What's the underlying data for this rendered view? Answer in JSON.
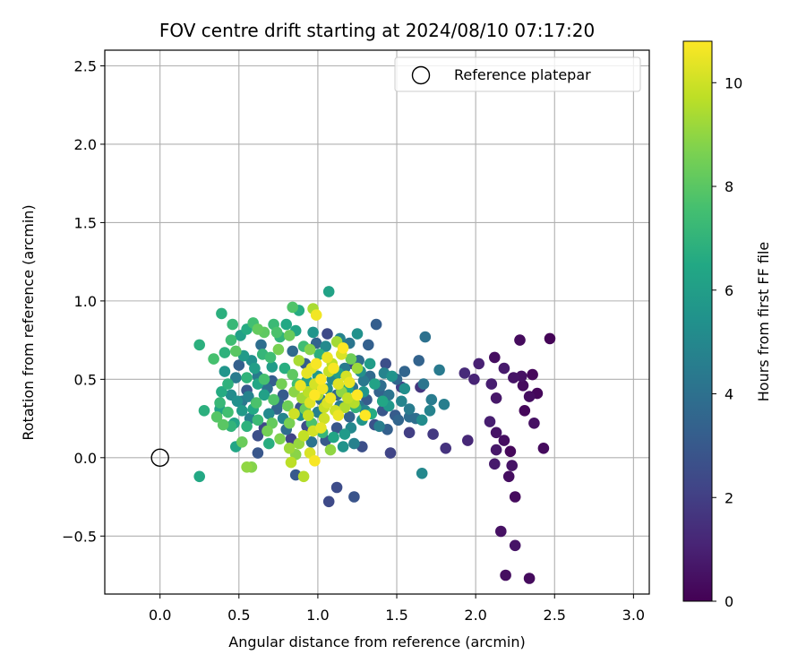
{
  "chart_data": {
    "type": "scatter",
    "title": "FOV centre drift starting at 2024/08/10 07:17:20",
    "xlabel": "Angular distance from reference (arcmin)",
    "ylabel": "Rotation from reference (arcmin)",
    "xlim": [
      -0.35,
      3.1
    ],
    "ylim": [
      -0.87,
      2.6
    ],
    "x_ticks": [
      0.0,
      0.5,
      1.0,
      1.5,
      2.0,
      2.5,
      3.0
    ],
    "x_tick_labels": [
      "0.0",
      "0.5",
      "1.0",
      "1.5",
      "2.0",
      "2.5",
      "3.0"
    ],
    "y_ticks": [
      -0.5,
      0.0,
      0.5,
      1.0,
      1.5,
      2.0,
      2.5
    ],
    "y_tick_labels": [
      "−0.5",
      "0.0",
      "0.5",
      "1.0",
      "1.5",
      "2.0",
      "2.5"
    ],
    "grid": true,
    "legend": {
      "placement": "top-right",
      "entries": [
        "Reference platepar"
      ]
    },
    "reference_point": {
      "x": 0.0,
      "y": 0.0
    },
    "colorbar": {
      "label": "Hours from first FF file",
      "colormap": "viridis",
      "range": [
        0,
        10.8
      ],
      "ticks": [
        0,
        2,
        4,
        6,
        8,
        10
      ],
      "tick_labels": [
        "0",
        "2",
        "4",
        "6",
        "8",
        "10"
      ]
    },
    "points": [
      [
        2.47,
        0.76,
        0.1
      ],
      [
        2.28,
        0.75,
        0.3
      ],
      [
        2.12,
        0.64,
        0.4
      ],
      [
        2.36,
        0.53,
        0.2
      ],
      [
        2.29,
        0.52,
        0.5
      ],
      [
        2.24,
        0.51,
        0.6
      ],
      [
        2.18,
        0.57,
        0.8
      ],
      [
        2.02,
        0.6,
        1.0
      ],
      [
        1.93,
        0.54,
        1.3
      ],
      [
        1.99,
        0.5,
        1.1
      ],
      [
        2.1,
        0.47,
        0.9
      ],
      [
        2.3,
        0.46,
        0.3
      ],
      [
        2.39,
        0.41,
        0.2
      ],
      [
        2.34,
        0.39,
        0.4
      ],
      [
        2.13,
        0.38,
        0.7
      ],
      [
        2.31,
        0.3,
        0.2
      ],
      [
        2.09,
        0.23,
        0.9
      ],
      [
        2.37,
        0.22,
        0.5
      ],
      [
        2.13,
        0.16,
        0.6
      ],
      [
        2.18,
        0.11,
        0.4
      ],
      [
        1.95,
        0.11,
        1.2
      ],
      [
        2.43,
        0.06,
        0.3
      ],
      [
        2.13,
        0.05,
        0.7
      ],
      [
        2.22,
        0.04,
        0.2
      ],
      [
        2.12,
        -0.04,
        0.8
      ],
      [
        2.23,
        -0.05,
        0.6
      ],
      [
        2.21,
        -0.12,
        0.4
      ],
      [
        2.25,
        -0.25,
        0.3
      ],
      [
        2.16,
        -0.47,
        0.5
      ],
      [
        2.25,
        -0.56,
        0.6
      ],
      [
        2.19,
        -0.75,
        0.4
      ],
      [
        2.34,
        -0.77,
        0.3
      ],
      [
        1.81,
        0.06,
        1.6
      ],
      [
        1.73,
        0.15,
        1.8
      ],
      [
        1.58,
        0.16,
        2.0
      ],
      [
        1.46,
        0.03,
        2.2
      ],
      [
        1.65,
        0.45,
        1.7
      ],
      [
        1.53,
        0.45,
        2.1
      ],
      [
        1.12,
        -0.19,
        2.5
      ],
      [
        1.07,
        -0.28,
        2.4
      ],
      [
        1.23,
        -0.25,
        2.8
      ],
      [
        0.86,
        -0.11,
        3.0
      ],
      [
        1.22,
        0.6,
        2.3
      ],
      [
        1.43,
        0.6,
        2.6
      ],
      [
        1.37,
        0.85,
        3.2
      ],
      [
        1.32,
        0.72,
        3.3
      ],
      [
        1.06,
        0.79,
        2.4
      ],
      [
        1.64,
        0.62,
        3.4
      ],
      [
        1.55,
        0.55,
        3.5
      ],
      [
        1.5,
        0.5,
        3.6
      ],
      [
        1.68,
        0.77,
        4.0
      ],
      [
        1.67,
        0.47,
        4.2
      ],
      [
        1.77,
        0.56,
        4.4
      ],
      [
        1.8,
        0.34,
        4.6
      ],
      [
        1.71,
        0.3,
        4.8
      ],
      [
        1.72,
        0.37,
        4.5
      ],
      [
        1.66,
        0.24,
        5.2
      ],
      [
        1.66,
        -0.1,
        5.0
      ],
      [
        1.58,
        0.26,
        3.8
      ],
      [
        1.49,
        0.27,
        3.1
      ],
      [
        1.41,
        0.3,
        2.9
      ],
      [
        1.36,
        0.21,
        2.7
      ],
      [
        1.45,
        0.4,
        4.1
      ],
      [
        1.4,
        0.46,
        3.9
      ],
      [
        1.33,
        0.52,
        3.7
      ],
      [
        1.29,
        0.49,
        4.3
      ],
      [
        1.26,
        0.62,
        3.8
      ],
      [
        1.25,
        0.79,
        5.4
      ],
      [
        1.29,
        0.42,
        5.6
      ],
      [
        1.3,
        0.3,
        4.9
      ],
      [
        1.2,
        0.26,
        3.4
      ],
      [
        1.12,
        0.19,
        2.9
      ],
      [
        1.16,
        0.07,
        5.5
      ],
      [
        1.23,
        0.09,
        4.7
      ],
      [
        1.28,
        0.07,
        2.6
      ],
      [
        1.05,
        0.11,
        3.0
      ],
      [
        0.93,
        0.2,
        2.5
      ],
      [
        0.83,
        0.12,
        2.2
      ],
      [
        0.66,
        0.19,
        2.3
      ],
      [
        0.62,
        0.14,
        2.6
      ],
      [
        0.71,
        0.49,
        3.2
      ],
      [
        0.78,
        0.4,
        3.1
      ],
      [
        0.75,
        0.35,
        3.6
      ],
      [
        0.89,
        0.32,
        2.8
      ],
      [
        0.97,
        0.46,
        3.9
      ],
      [
        1.02,
        0.37,
        4.1
      ],
      [
        1.12,
        0.4,
        3.6
      ],
      [
        1.14,
        0.33,
        4.6
      ],
      [
        0.99,
        0.73,
        3.4
      ],
      [
        0.92,
        0.6,
        3.2
      ],
      [
        0.84,
        0.68,
        3.7
      ],
      [
        0.64,
        0.72,
        3.9
      ],
      [
        0.55,
        0.43,
        3.0
      ],
      [
        0.5,
        0.59,
        3.3
      ],
      [
        0.62,
        0.03,
        2.9
      ],
      [
        0.52,
        0.36,
        4.3
      ],
      [
        0.48,
        0.51,
        4.5
      ],
      [
        0.57,
        0.25,
        4.7
      ],
      [
        0.45,
        0.4,
        5.2
      ],
      [
        0.41,
        0.55,
        5.6
      ],
      [
        0.53,
        0.65,
        5.8
      ],
      [
        0.6,
        0.57,
        6.0
      ],
      [
        0.47,
        0.22,
        6.3
      ],
      [
        0.59,
        0.31,
        6.5
      ],
      [
        0.51,
        0.78,
        6.1
      ],
      [
        0.55,
        0.82,
        6.6
      ],
      [
        0.41,
        0.67,
        6.9
      ],
      [
        0.39,
        0.92,
        6.8
      ],
      [
        0.48,
        0.07,
        6.4
      ],
      [
        0.69,
        0.09,
        6.7
      ],
      [
        0.25,
        -0.12,
        6.5
      ],
      [
        0.28,
        0.3,
        6.8
      ],
      [
        0.25,
        0.72,
        6.8
      ],
      [
        0.46,
        0.85,
        7.2
      ],
      [
        0.59,
        0.86,
        7.5
      ],
      [
        0.72,
        0.85,
        7.3
      ],
      [
        0.76,
        0.77,
        7.0
      ],
      [
        0.84,
        0.96,
        7.8
      ],
      [
        0.88,
        0.94,
        6.6
      ],
      [
        1.07,
        1.06,
        6.2
      ],
      [
        0.97,
        0.95,
        9.4
      ],
      [
        0.99,
        0.91,
        10.6
      ],
      [
        0.66,
        0.8,
        8.1
      ],
      [
        0.7,
        0.64,
        7.4
      ],
      [
        0.66,
        0.5,
        7.6
      ],
      [
        0.61,
        0.35,
        7.7
      ],
      [
        0.38,
        0.35,
        7.2
      ],
      [
        0.36,
        0.26,
        7.9
      ],
      [
        0.34,
        0.63,
        7.6
      ],
      [
        0.4,
        0.21,
        8.0
      ],
      [
        0.45,
        0.2,
        7.0
      ],
      [
        0.55,
        0.2,
        6.9
      ],
      [
        0.62,
        0.24,
        7.3
      ],
      [
        0.71,
        0.22,
        8.2
      ],
      [
        0.68,
        0.17,
        8.5
      ],
      [
        0.58,
        -0.06,
        8.8
      ],
      [
        0.55,
        -0.06,
        9.0
      ],
      [
        0.52,
        0.1,
        8.3
      ],
      [
        0.76,
        0.12,
        8.7
      ],
      [
        0.82,
        0.22,
        8.6
      ],
      [
        0.82,
        0.06,
        9.2
      ],
      [
        0.86,
        0.02,
        8.9
      ],
      [
        0.91,
        -0.12,
        9.6
      ],
      [
        0.95,
        0.03,
        10.2
      ],
      [
        0.83,
        -0.03,
        9.7
      ],
      [
        0.88,
        0.09,
        9.1
      ],
      [
        0.91,
        0.14,
        9.8
      ],
      [
        0.97,
        0.17,
        10.1
      ],
      [
        1.02,
        0.19,
        10.4
      ],
      [
        0.94,
        0.27,
        9.9
      ],
      [
        1.04,
        0.25,
        10.0
      ],
      [
        1.13,
        0.27,
        10.5
      ],
      [
        1.08,
        0.05,
        9.0
      ],
      [
        0.98,
        -0.02,
        10.7
      ],
      [
        1.3,
        0.27,
        10.8
      ],
      [
        1.17,
        0.32,
        9.5
      ],
      [
        1.06,
        0.35,
        10.2
      ],
      [
        0.98,
        0.4,
        10.8
      ],
      [
        1.03,
        0.44,
        10.6
      ],
      [
        1.13,
        0.47,
        10.3
      ],
      [
        1.18,
        0.52,
        10.1
      ],
      [
        1.07,
        0.55,
        9.9
      ],
      [
        0.93,
        0.54,
        10.4
      ],
      [
        0.99,
        0.6,
        10.7
      ],
      [
        1.09,
        0.6,
        9.7
      ],
      [
        1.15,
        0.66,
        10.2
      ],
      [
        1.16,
        0.7,
        10.9
      ],
      [
        1.12,
        0.74,
        9.3
      ],
      [
        1.21,
        0.63,
        8.4
      ],
      [
        1.25,
        0.4,
        10.8
      ],
      [
        1.19,
        0.38,
        9.8
      ],
      [
        1.15,
        0.42,
        9.0
      ],
      [
        0.95,
        0.69,
        8.8
      ],
      [
        0.88,
        0.62,
        9.4
      ],
      [
        0.82,
        0.78,
        8.3
      ],
      [
        0.75,
        0.69,
        8.6
      ],
      [
        0.84,
        0.53,
        8.1
      ],
      [
        0.77,
        0.47,
        8.5
      ],
      [
        0.85,
        0.42,
        8.9
      ],
      [
        0.9,
        0.38,
        9.3
      ],
      [
        0.81,
        0.33,
        8.4
      ],
      [
        0.72,
        0.37,
        7.8
      ],
      [
        0.66,
        0.4,
        6.1
      ],
      [
        0.62,
        0.47,
        6.4
      ],
      [
        0.55,
        0.51,
        7.0
      ],
      [
        0.58,
        0.62,
        5.4
      ],
      [
        0.52,
        0.3,
        5.8
      ],
      [
        0.69,
        0.28,
        5.1
      ],
      [
        0.78,
        0.25,
        4.9
      ],
      [
        0.89,
        0.27,
        5.4
      ],
      [
        0.93,
        0.49,
        6.0
      ],
      [
        1.0,
        0.52,
        5.7
      ],
      [
        1.09,
        0.5,
        5.0
      ],
      [
        1.17,
        0.57,
        4.4
      ],
      [
        1.22,
        0.45,
        4.0
      ],
      [
        1.27,
        0.55,
        5.3
      ],
      [
        1.33,
        0.6,
        5.9
      ],
      [
        1.36,
        0.47,
        6.2
      ],
      [
        1.41,
        0.36,
        6.4
      ],
      [
        1.45,
        0.33,
        5.7
      ],
      [
        1.53,
        0.36,
        4.9
      ],
      [
        1.58,
        0.31,
        4.5
      ],
      [
        1.62,
        0.25,
        3.9
      ],
      [
        1.51,
        0.24,
        3.5
      ],
      [
        1.55,
        0.44,
        5.3
      ],
      [
        1.47,
        0.52,
        5.5
      ],
      [
        1.42,
        0.54,
        4.8
      ],
      [
        1.39,
        0.42,
        3.4
      ],
      [
        1.31,
        0.37,
        3.1
      ],
      [
        1.26,
        0.33,
        4.2
      ],
      [
        1.21,
        0.19,
        5.0
      ],
      [
        1.17,
        0.15,
        5.8
      ],
      [
        1.1,
        0.13,
        6.3
      ],
      [
        1.03,
        0.16,
        7.1
      ],
      [
        0.96,
        0.22,
        7.7
      ],
      [
        0.92,
        0.31,
        8.3
      ],
      [
        0.87,
        0.47,
        7.5
      ],
      [
        0.79,
        0.57,
        6.7
      ],
      [
        0.71,
        0.58,
        5.9
      ],
      [
        0.65,
        0.66,
        7.1
      ],
      [
        0.74,
        0.8,
        7.7
      ],
      [
        0.8,
        0.85,
        6.5
      ],
      [
        0.62,
        0.82,
        8.2
      ],
      [
        0.48,
        0.68,
        8.0
      ],
      [
        0.45,
        0.75,
        7.4
      ],
      [
        0.43,
        0.47,
        6.9
      ],
      [
        0.39,
        0.42,
        6.6
      ],
      [
        0.43,
        0.29,
        7.5
      ],
      [
        0.38,
        0.31,
        6.2
      ],
      [
        0.49,
        0.36,
        5.4
      ],
      [
        0.56,
        0.39,
        4.8
      ],
      [
        0.62,
        0.52,
        4.4
      ],
      [
        0.68,
        0.44,
        4.0
      ],
      [
        0.74,
        0.31,
        3.5
      ],
      [
        0.8,
        0.18,
        3.8
      ],
      [
        0.96,
        0.1,
        4.1
      ],
      [
        1.0,
        0.29,
        4.7
      ],
      [
        1.06,
        0.44,
        5.2
      ],
      [
        1.13,
        0.54,
        6.0
      ],
      [
        1.19,
        0.44,
        6.5
      ],
      [
        1.24,
        0.32,
        7.0
      ],
      [
        1.28,
        0.24,
        5.6
      ],
      [
        1.34,
        0.28,
        6.6
      ],
      [
        1.39,
        0.2,
        4.6
      ],
      [
        1.44,
        0.18,
        3.3
      ],
      [
        1.01,
        0.66,
        6.8
      ],
      [
        0.91,
        0.71,
        7.4
      ],
      [
        0.86,
        0.81,
        6.3
      ],
      [
        0.97,
        0.8,
        5.6
      ],
      [
        1.05,
        0.71,
        5.1
      ],
      [
        1.14,
        0.76,
        4.8
      ],
      [
        1.2,
        0.73,
        4.2
      ],
      [
        0.85,
        0.28,
        10.0
      ],
      [
        0.89,
        0.46,
        10.5
      ],
      [
        0.95,
        0.35,
        10.3
      ],
      [
        1.0,
        0.4,
        9.6
      ],
      [
        1.04,
        0.32,
        9.9
      ],
      [
        1.08,
        0.38,
        10.6
      ],
      [
        1.11,
        0.3,
        10.0
      ],
      [
        1.02,
        0.5,
        10.8
      ],
      [
        0.96,
        0.57,
        10.4
      ],
      [
        1.06,
        0.64,
        10.5
      ],
      [
        1.1,
        0.57,
        10.7
      ],
      [
        1.2,
        0.48,
        10.5
      ],
      [
        1.25,
        0.57,
        9.2
      ],
      [
        1.23,
        0.35,
        9.6
      ],
      [
        0.94,
        0.42,
        9.7
      ],
      [
        0.98,
        0.47,
        10.1
      ]
    ]
  }
}
